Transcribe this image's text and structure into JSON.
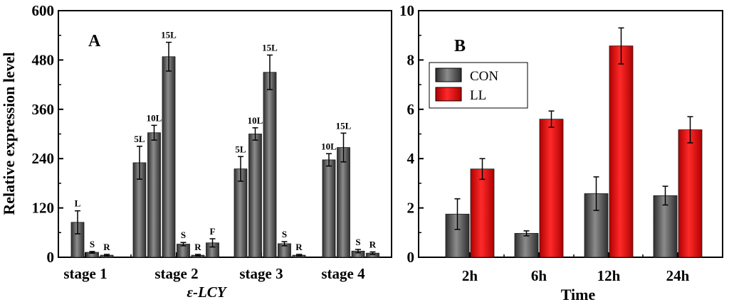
{
  "chart_data": [
    {
      "type": "bar",
      "panel_label": "A",
      "title": "",
      "xlabel": "ε-LCY",
      "ylabel": "Relative expression level",
      "ylim": [
        0,
        600
      ],
      "yticks": [
        "0",
        "120",
        "240",
        "360",
        "480",
        "600"
      ],
      "categories": [
        "stage 1",
        "stage 2",
        "stage 3",
        "stage 4"
      ],
      "grid": false,
      "color": "#5a5a5a",
      "groups": [
        {
          "category": "stage 1",
          "bars": [
            {
              "label": "L",
              "value": 85,
              "error": 28
            },
            {
              "label": "S",
              "value": 12,
              "error": 2
            },
            {
              "label": "R",
              "value": 5,
              "error": 2
            }
          ]
        },
        {
          "category": "stage 2",
          "bars": [
            {
              "label": "5L",
              "value": 230,
              "error": 40
            },
            {
              "label": "10L",
              "value": 303,
              "error": 18
            },
            {
              "label": "15L",
              "value": 488,
              "error": 35
            },
            {
              "label": "S",
              "value": 32,
              "error": 4
            },
            {
              "label": "R",
              "value": 5,
              "error": 2
            },
            {
              "label": "F",
              "value": 35,
              "error": 10
            }
          ]
        },
        {
          "category": "stage 3",
          "bars": [
            {
              "label": "5L",
              "value": 215,
              "error": 30
            },
            {
              "label": "10L",
              "value": 300,
              "error": 15
            },
            {
              "label": "15L",
              "value": 450,
              "error": 42
            },
            {
              "label": "S",
              "value": 33,
              "error": 5
            },
            {
              "label": "R",
              "value": 5,
              "error": 2
            }
          ]
        },
        {
          "category": "stage 4",
          "bars": [
            {
              "label": "10L",
              "value": 237,
              "error": 15
            },
            {
              "label": "15L",
              "value": 267,
              "error": 35
            },
            {
              "label": "S",
              "value": 15,
              "error": 4
            },
            {
              "label": "R",
              "value": 10,
              "error": 3
            }
          ]
        }
      ]
    },
    {
      "type": "bar",
      "panel_label": "B",
      "title": "",
      "xlabel": "Time",
      "ylabel": "",
      "ylim": [
        0,
        10
      ],
      "yticks": [
        "0",
        "2",
        "4",
        "6",
        "8",
        "10"
      ],
      "categories": [
        "2h",
        "6h",
        "12h",
        "24h"
      ],
      "grid": false,
      "legend_position": "top-left",
      "series": [
        {
          "name": "CON",
          "color": "#5a5a5a",
          "values": [
            1.75,
            0.97,
            2.58,
            2.5
          ],
          "errors": [
            0.62,
            0.1,
            0.68,
            0.38
          ]
        },
        {
          "name": "LL",
          "color": "#e41a1a",
          "values": [
            3.58,
            5.6,
            8.57,
            5.17
          ],
          "errors": [
            0.42,
            0.33,
            0.73,
            0.53
          ]
        }
      ]
    }
  ]
}
